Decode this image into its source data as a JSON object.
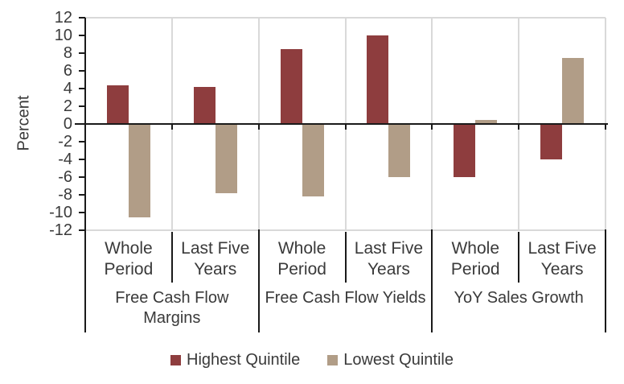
{
  "chart_data": {
    "type": "bar",
    "title": "",
    "ylabel": "Percent",
    "ylim": [
      -12,
      12
    ],
    "ytick_step": 2,
    "grid": "category-separators-on",
    "legend_position": "bottom",
    "groups": [
      {
        "label": "Free Cash Flow Margins",
        "categories": [
          "Whole Period",
          "Last Five Years"
        ]
      },
      {
        "label": "Free Cash Flow Yields",
        "categories": [
          "Whole Period",
          "Last Five Years"
        ]
      },
      {
        "label": "YoY Sales Growth",
        "categories": [
          "Whole Period",
          "Last Five Years"
        ]
      }
    ],
    "categories": [
      "Whole Period",
      "Last Five Years",
      "Whole Period",
      "Last Five Years",
      "Whole Period",
      "Last Five Years"
    ],
    "series": [
      {
        "name": "Highest Quintile",
        "color": "#8e3d3e",
        "values": [
          4.4,
          4.2,
          8.5,
          10.0,
          -6.0,
          -4.0
        ]
      },
      {
        "name": "Lowest Quintile",
        "color": "#b19d87",
        "values": [
          -10.5,
          -7.8,
          -8.2,
          -6.0,
          0.5,
          7.5
        ]
      }
    ]
  },
  "colors": {
    "highest_quintile": "#8e3d3e",
    "lowest_quintile": "#b19d87",
    "gridline": "#d9d9d9",
    "axis": "#1a1a1a",
    "text": "#3a3a3a",
    "background": "#ffffff"
  }
}
